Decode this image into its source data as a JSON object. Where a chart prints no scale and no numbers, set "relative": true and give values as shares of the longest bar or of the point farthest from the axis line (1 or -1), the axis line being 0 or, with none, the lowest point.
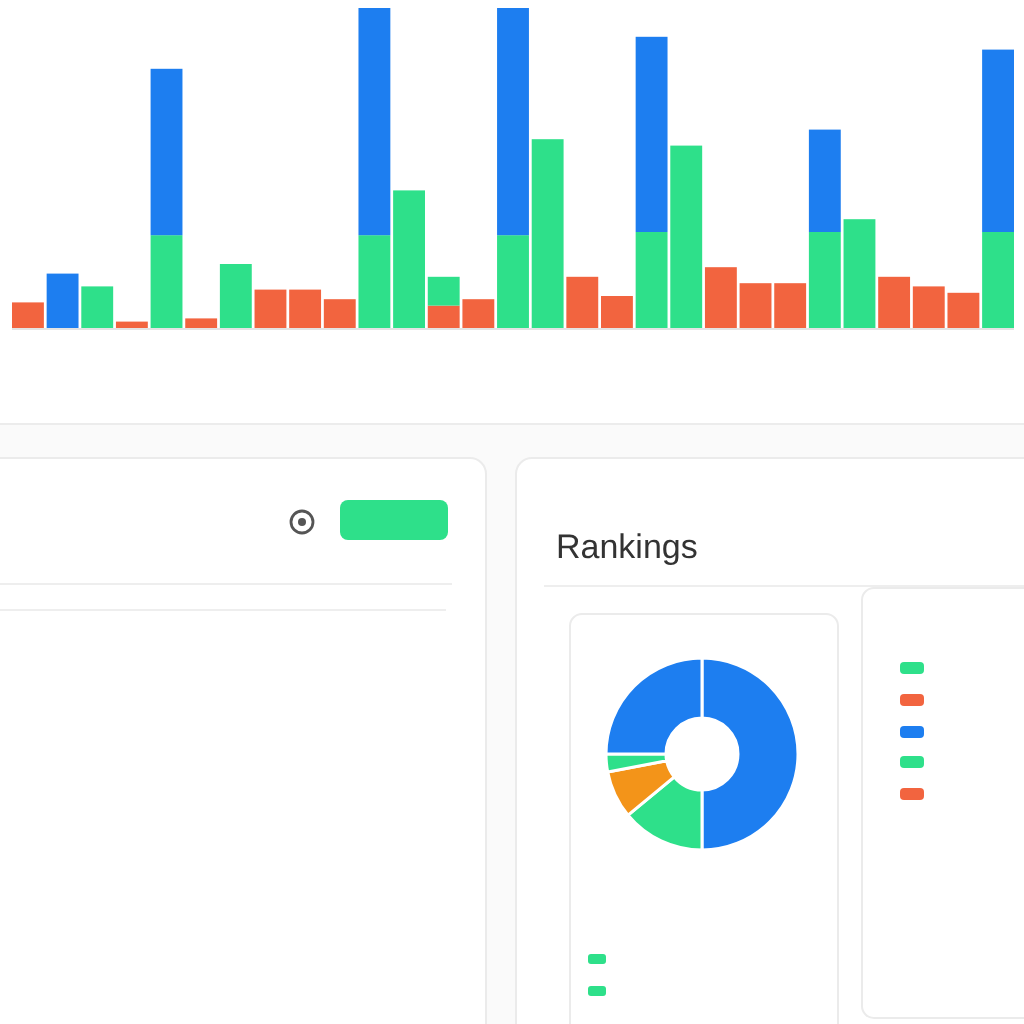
{
  "chart_data": [
    {
      "type": "bar",
      "stacked": true,
      "relative": true,
      "categories": [
        null,
        null,
        null,
        null,
        null,
        null,
        null,
        null,
        null,
        null,
        null,
        null,
        null,
        null,
        null,
        null,
        null,
        null,
        null,
        null,
        null,
        null,
        null,
        null,
        null,
        null,
        null,
        null,
        null
      ],
      "series": [
        {
          "color": "#f2643f",
          "values": [
            0.08,
            null,
            null,
            0.02,
            null,
            0.03,
            null,
            0.12,
            0.12,
            0.09,
            null,
            null,
            0.07,
            0.09,
            null,
            null,
            0.16,
            0.1,
            null,
            null,
            0.19,
            0.14,
            0.14,
            null,
            null,
            0.16,
            0.13,
            0.11,
            null
          ]
        },
        {
          "color": "#2ee08a",
          "values": [
            null,
            null,
            0.13,
            null,
            0.29,
            null,
            0.2,
            null,
            null,
            null,
            0.29,
            0.43,
            0.09,
            null,
            0.29,
            0.59,
            null,
            null,
            0.3,
            0.57,
            null,
            null,
            null,
            0.3,
            0.34,
            null,
            null,
            null,
            0.3
          ]
        },
        {
          "color": "#1d7ef0",
          "values": [
            null,
            0.17,
            null,
            null,
            0.52,
            null,
            null,
            null,
            null,
            null,
            0.71,
            null,
            null,
            null,
            0.71,
            null,
            null,
            null,
            0.61,
            null,
            null,
            null,
            null,
            0.32,
            null,
            null,
            null,
            null,
            0.57
          ]
        }
      ]
    },
    {
      "type": "donut",
      "title": "Rankings",
      "categories": [
        null,
        null,
        null,
        null,
        null
      ],
      "values": [
        50,
        14,
        8,
        3,
        25
      ],
      "colors": [
        "#1d7ef0",
        "#2ee08a",
        "#f39419",
        "#2ee08a",
        "#1d7ef0"
      ]
    }
  ]
}
